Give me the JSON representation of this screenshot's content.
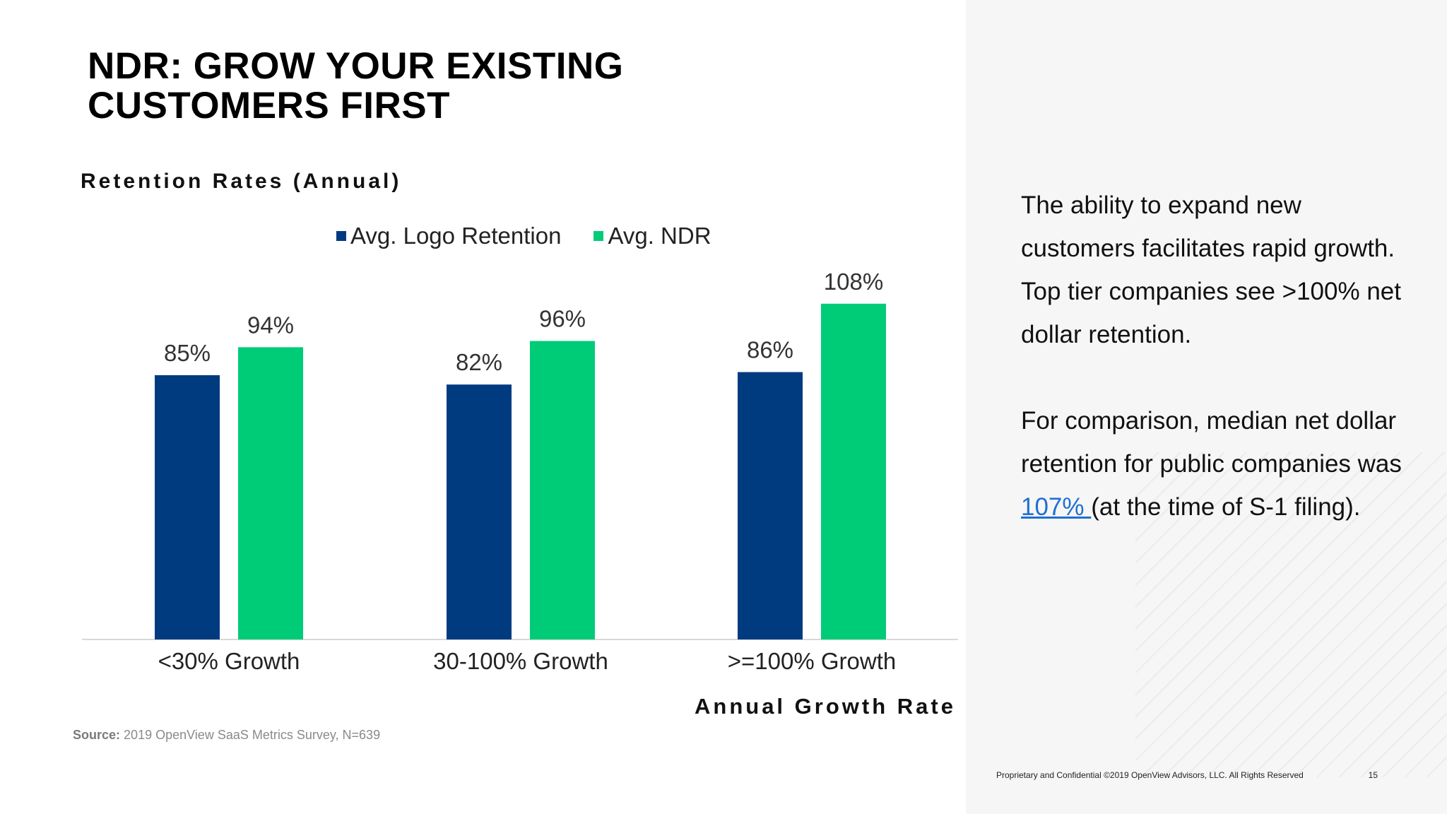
{
  "title": {
    "line1": "NDR: GROW YOUR EXISTING",
    "line2": "CUSTOMERS FIRST"
  },
  "chart_heading": "Retention Rates (Annual)",
  "chart_data": {
    "type": "bar",
    "categories": [
      "<30% Growth",
      "30-100% Growth",
      ">=100% Growth"
    ],
    "series": [
      {
        "name": "Avg. Logo Retention",
        "color": "#003b80",
        "values": [
          85,
          82,
          86
        ],
        "labels": [
          "85%",
          "82%",
          "86%"
        ]
      },
      {
        "name": "Avg. NDR",
        "color": "#00cc78",
        "values": [
          94,
          96,
          108
        ],
        "labels": [
          "94%",
          "96%",
          "108%"
        ]
      }
    ],
    "xlabel": "Annual Growth Rate",
    "ylabel": "",
    "ylim": [
      0,
      130
    ],
    "legend_position": "top-center",
    "grid": false
  },
  "source": {
    "label": "Source:",
    "text": "2019 OpenView SaaS Metrics Survey, N=639"
  },
  "callout": {
    "paragraph1": "The ability to expand new customers facilitates rapid growth. Top tier companies see >100% net dollar retention.",
    "paragraph2_before": "For comparison, median net dollar retention for public companies was ",
    "paragraph2_link": "107% ",
    "paragraph2_after": "(at the time of S-1 filing)."
  },
  "footer": {
    "text": "Proprietary and Confidential ©2019 OpenView Advisors, LLC. All Rights Reserved",
    "page_number": "15"
  }
}
